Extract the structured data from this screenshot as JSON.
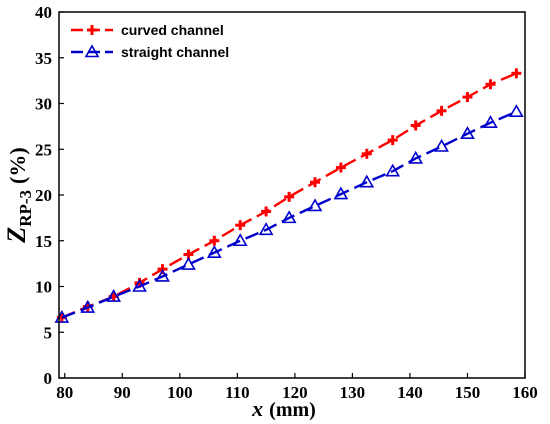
{
  "chart_data": {
    "type": "line",
    "xlabel_var": "x",
    "xlabel_unit": "(mm)",
    "ylabel_var": "Z",
    "ylabel_sub": "RP-3",
    "ylabel_unit": "(%)",
    "xlim": [
      79,
      160
    ],
    "ylim": [
      0,
      40
    ],
    "xticks": [
      80,
      90,
      100,
      110,
      120,
      130,
      140,
      150,
      160
    ],
    "yticks": [
      0,
      5,
      10,
      15,
      20,
      25,
      30,
      35,
      40
    ],
    "legend_position": "top-left",
    "grid": false,
    "series": [
      {
        "name": "curved channel",
        "color": "#ff0000",
        "marker": "plus",
        "x": [
          79.5,
          84,
          88.5,
          93,
          97,
          101.5,
          106,
          110.5,
          115,
          119,
          123.5,
          128,
          132.5,
          137,
          141,
          145.5,
          150,
          154,
          158.5
        ],
        "y": [
          6.6,
          7.8,
          8.9,
          10.4,
          11.9,
          13.5,
          15.0,
          16.7,
          18.2,
          19.8,
          21.4,
          23.0,
          24.5,
          26.0,
          27.6,
          29.2,
          30.7,
          32.1,
          33.3
        ]
      },
      {
        "name": "straight channel",
        "color": "#0000cc",
        "marker": "triangle",
        "x": [
          79.5,
          84,
          88.5,
          93,
          97,
          101.5,
          106,
          110.5,
          115,
          119,
          123.5,
          128,
          132.5,
          137,
          141,
          145.5,
          150,
          154,
          158.5
        ],
        "y": [
          6.6,
          7.7,
          8.9,
          10.0,
          11.1,
          12.4,
          13.7,
          15.0,
          16.2,
          17.5,
          18.8,
          20.1,
          21.4,
          22.6,
          24.0,
          25.3,
          26.7,
          27.9,
          29.1
        ]
      }
    ]
  }
}
